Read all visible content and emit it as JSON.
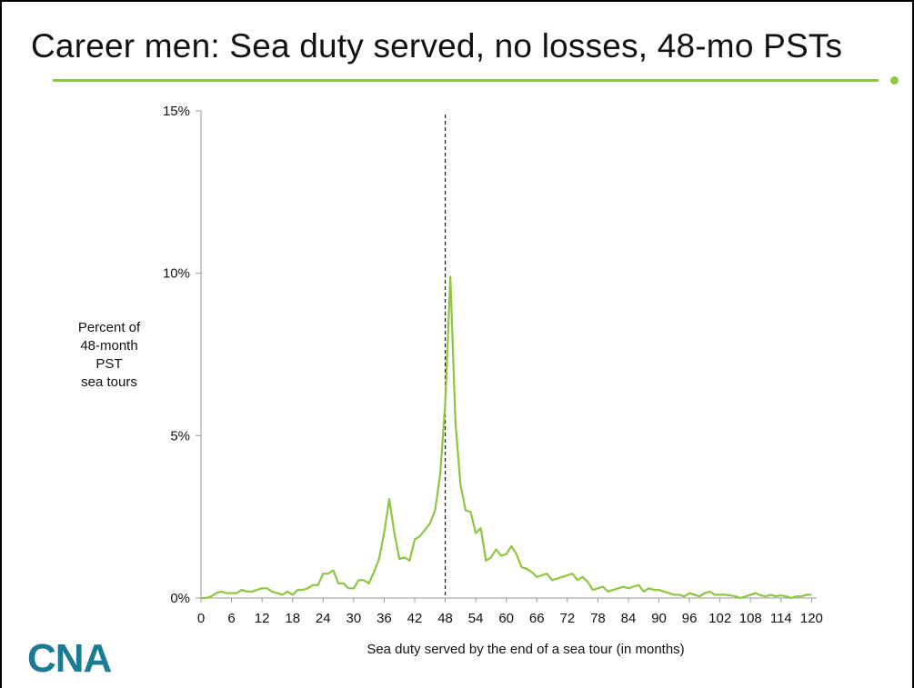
{
  "slide": {
    "title": "Career men: Sea duty served, no losses, 48-mo PSTs",
    "logo": "CNA",
    "accent_color": "#8dc63f",
    "logo_color": "#1b7a94"
  },
  "chart_data": {
    "type": "line",
    "title": "",
    "xlabel": "Sea duty served by the end of a sea tour (in months)",
    "ylabel_lines": [
      "Percent of",
      "48-month",
      "PST",
      "sea tours"
    ],
    "xlim": [
      0,
      121
    ],
    "ylim": [
      0,
      15
    ],
    "xticks": [
      0,
      6,
      12,
      18,
      24,
      30,
      36,
      42,
      48,
      54,
      60,
      66,
      72,
      78,
      84,
      90,
      96,
      102,
      108,
      114,
      120
    ],
    "yticks": [
      {
        "value": 0,
        "label": "0%"
      },
      {
        "value": 5,
        "label": "5%"
      },
      {
        "value": 10,
        "label": "10%"
      },
      {
        "value": 15,
        "label": "15%"
      }
    ],
    "grid": false,
    "reference_line": {
      "x": 48,
      "style": "dashed"
    },
    "series": [
      {
        "color": "#8dc63f",
        "x": [
          0,
          1,
          2,
          3,
          4,
          5,
          6,
          7,
          8,
          9,
          10,
          11,
          12,
          13,
          14,
          15,
          16,
          17,
          18,
          19,
          20,
          21,
          22,
          23,
          24,
          25,
          26,
          27,
          28,
          29,
          30,
          31,
          32,
          33,
          34,
          35,
          36,
          37,
          38,
          39,
          40,
          41,
          42,
          43,
          44,
          45,
          46,
          47,
          48,
          49,
          50,
          51,
          52,
          53,
          54,
          55,
          56,
          57,
          58,
          59,
          60,
          61,
          62,
          63,
          64,
          65,
          66,
          67,
          68,
          69,
          70,
          71,
          72,
          73,
          74,
          75,
          76,
          77,
          78,
          79,
          80,
          81,
          82,
          83,
          84,
          85,
          86,
          87,
          88,
          89,
          90,
          91,
          92,
          93,
          94,
          95,
          96,
          97,
          98,
          99,
          100,
          101,
          102,
          103,
          104,
          105,
          106,
          107,
          108,
          109,
          110,
          111,
          112,
          113,
          114,
          115,
          116,
          117,
          118,
          119,
          120
        ],
        "values": [
          0.0,
          0.0,
          0.05,
          0.15,
          0.2,
          0.15,
          0.15,
          0.15,
          0.25,
          0.2,
          0.2,
          0.25,
          0.3,
          0.3,
          0.2,
          0.15,
          0.1,
          0.2,
          0.1,
          0.25,
          0.25,
          0.3,
          0.4,
          0.4,
          0.75,
          0.75,
          0.85,
          0.45,
          0.45,
          0.3,
          0.3,
          0.55,
          0.55,
          0.45,
          0.8,
          1.2,
          2.0,
          3.05,
          2.0,
          1.2,
          1.25,
          1.15,
          1.8,
          1.9,
          2.1,
          2.3,
          2.7,
          3.8,
          6.0,
          9.9,
          5.4,
          3.5,
          2.7,
          2.65,
          2.0,
          2.15,
          1.15,
          1.25,
          1.5,
          1.3,
          1.35,
          1.6,
          1.35,
          0.95,
          0.9,
          0.8,
          0.65,
          0.7,
          0.75,
          0.55,
          0.6,
          0.65,
          0.7,
          0.75,
          0.55,
          0.65,
          0.5,
          0.25,
          0.3,
          0.35,
          0.2,
          0.25,
          0.3,
          0.35,
          0.3,
          0.35,
          0.4,
          0.2,
          0.3,
          0.25,
          0.25,
          0.2,
          0.15,
          0.1,
          0.1,
          0.05,
          0.15,
          0.1,
          0.05,
          0.15,
          0.2,
          0.1,
          0.1,
          0.1,
          0.08,
          0.05,
          0.0,
          0.05,
          0.1,
          0.15,
          0.08,
          0.05,
          0.1,
          0.05,
          0.08,
          0.05,
          0.0,
          0.05,
          0.05,
          0.1,
          0.1
        ]
      }
    ]
  }
}
